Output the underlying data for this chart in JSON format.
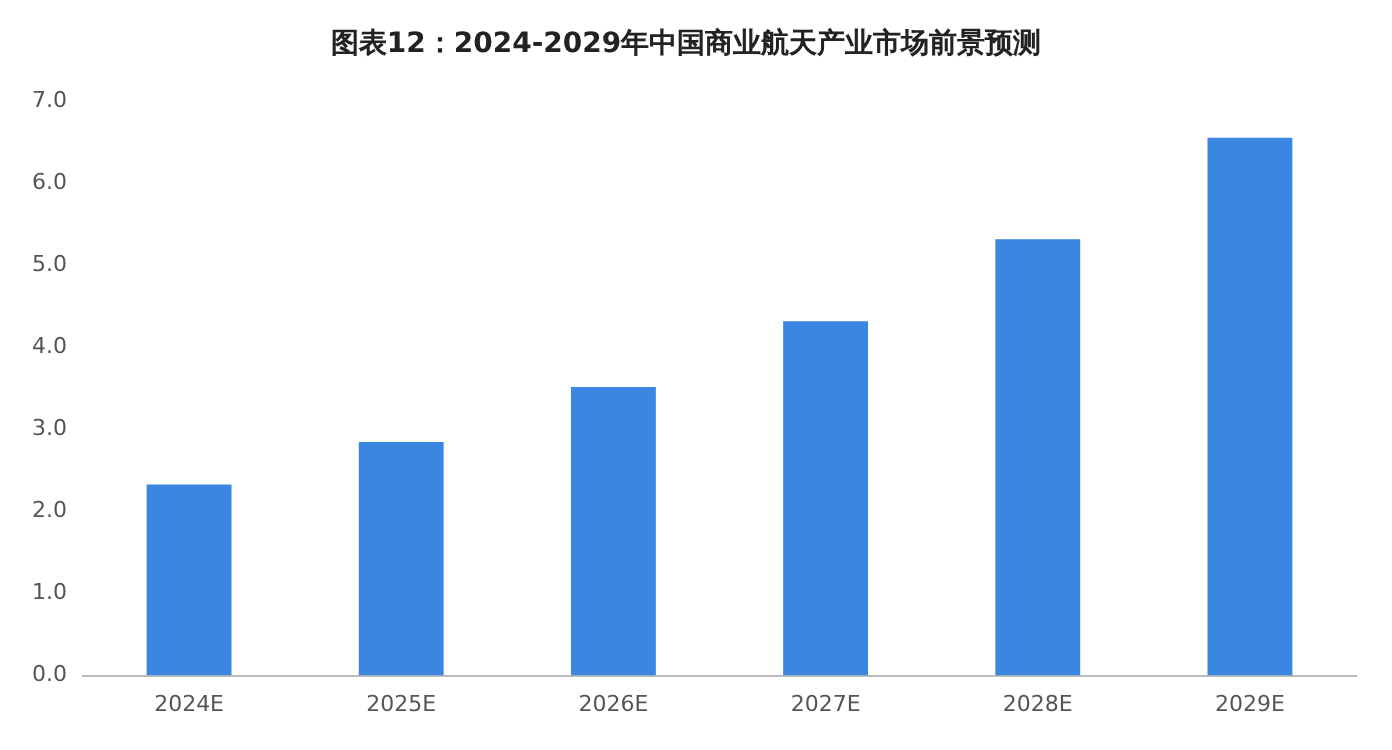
{
  "chart_data": {
    "type": "bar",
    "title": "图表12：2024-2029年中国商业航天产业市场前景预测",
    "categories": [
      "2024E",
      "2025E",
      "2026E",
      "2027E",
      "2028E",
      "2029E"
    ],
    "values": [
      2.33,
      2.85,
      3.52,
      4.32,
      5.32,
      6.56
    ],
    "color": "#3b86e0",
    "ylim": [
      0,
      7
    ],
    "yticks": [
      {
        "value": 0,
        "label": "0.0"
      },
      {
        "value": 1,
        "label": "1.0"
      },
      {
        "value": 2,
        "label": "2.0"
      },
      {
        "value": 3,
        "label": "3.0"
      },
      {
        "value": 4,
        "label": "4.0"
      },
      {
        "value": 5,
        "label": "5.0"
      },
      {
        "value": 6,
        "label": "6.0"
      },
      {
        "value": 7,
        "label": "7.0"
      }
    ],
    "grid": false
  }
}
